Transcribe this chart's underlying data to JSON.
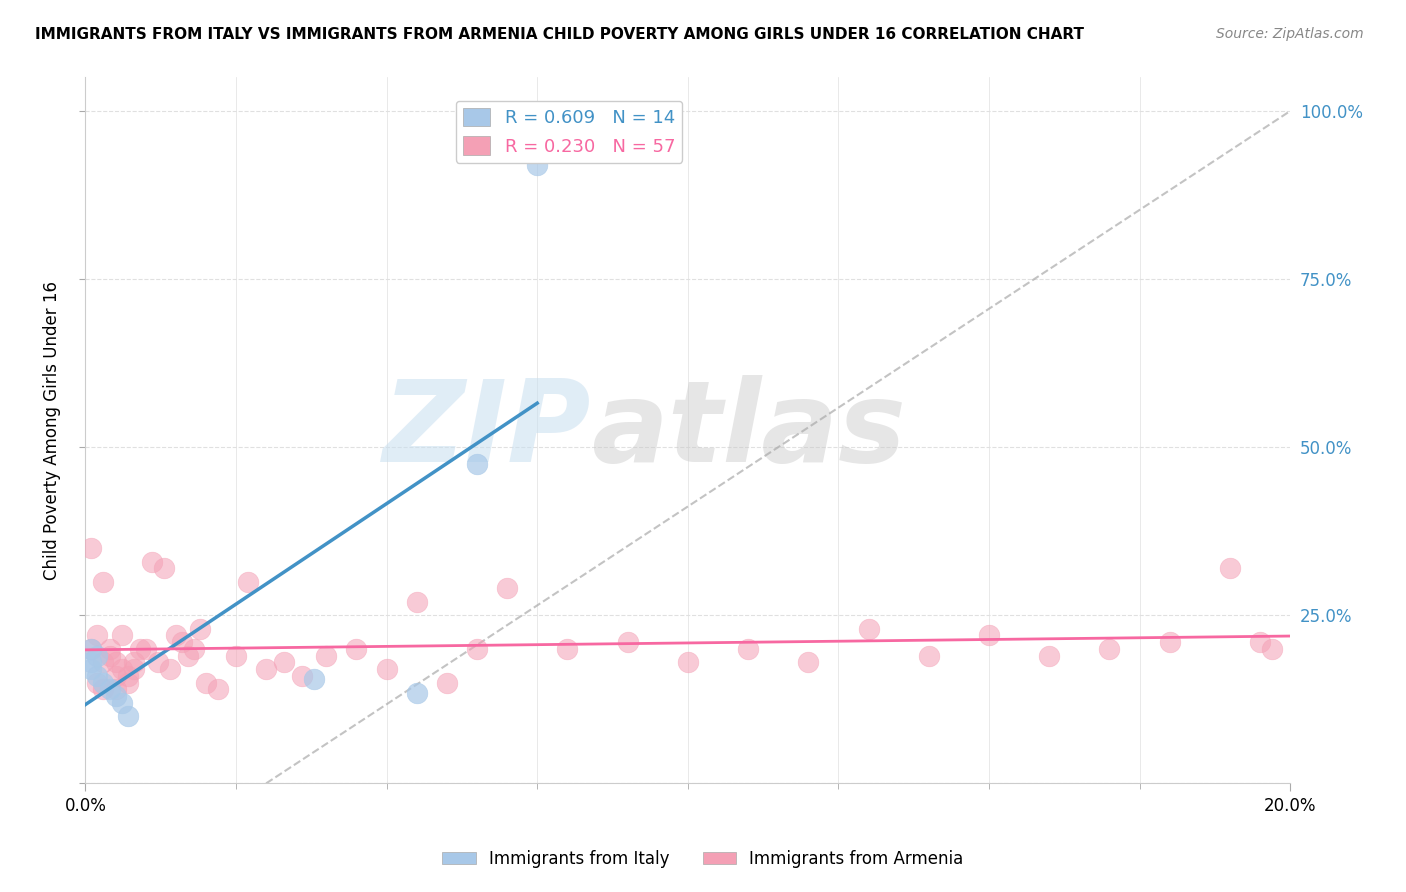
{
  "title": "IMMIGRANTS FROM ITALY VS IMMIGRANTS FROM ARMENIA CHILD POVERTY AMONG GIRLS UNDER 16 CORRELATION CHART",
  "source": "Source: ZipAtlas.com",
  "ylabel": "Child Poverty Among Girls Under 16",
  "right_ytick_labels": [
    "100.0%",
    "75.0%",
    "50.0%",
    "25.0%"
  ],
  "right_ytick_values": [
    1.0,
    0.75,
    0.5,
    0.25
  ],
  "legend_italy": "R = 0.609   N = 14",
  "legend_armenia": "R = 0.230   N = 57",
  "legend_bottom_italy": "Immigrants from Italy",
  "legend_bottom_armenia": "Immigrants from Armenia",
  "color_italy": "#a8c8e8",
  "color_armenia": "#f4a0b5",
  "color_italy_line": "#4292c6",
  "color_armenia_line": "#f768a1",
  "color_right_axis": "#4292c6",
  "watermark_zip": "ZIP",
  "watermark_atlas": "atlas",
  "italy_x": [
    0.001,
    0.001,
    0.001,
    0.002,
    0.002,
    0.003,
    0.004,
    0.005,
    0.006,
    0.007,
    0.055,
    0.065,
    0.075,
    0.038
  ],
  "italy_y": [
    0.18,
    0.2,
    0.17,
    0.16,
    0.19,
    0.15,
    0.14,
    0.13,
    0.12,
    0.1,
    0.135,
    0.475,
    0.92,
    0.155
  ],
  "armenia_x": [
    0.001,
    0.001,
    0.002,
    0.002,
    0.003,
    0.003,
    0.003,
    0.004,
    0.004,
    0.005,
    0.005,
    0.005,
    0.006,
    0.006,
    0.007,
    0.007,
    0.008,
    0.008,
    0.009,
    0.01,
    0.011,
    0.012,
    0.013,
    0.014,
    0.015,
    0.016,
    0.017,
    0.018,
    0.019,
    0.02,
    0.022,
    0.025,
    0.027,
    0.03,
    0.033,
    0.036,
    0.04,
    0.045,
    0.05,
    0.055,
    0.06,
    0.065,
    0.07,
    0.08,
    0.09,
    0.1,
    0.11,
    0.12,
    0.13,
    0.14,
    0.15,
    0.16,
    0.17,
    0.18,
    0.19,
    0.195,
    0.197
  ],
  "armenia_y": [
    0.35,
    0.2,
    0.22,
    0.15,
    0.3,
    0.18,
    0.14,
    0.19,
    0.2,
    0.16,
    0.18,
    0.14,
    0.22,
    0.17,
    0.15,
    0.16,
    0.17,
    0.18,
    0.2,
    0.2,
    0.33,
    0.18,
    0.32,
    0.17,
    0.22,
    0.21,
    0.19,
    0.2,
    0.23,
    0.15,
    0.14,
    0.19,
    0.3,
    0.17,
    0.18,
    0.16,
    0.19,
    0.2,
    0.17,
    0.27,
    0.15,
    0.2,
    0.29,
    0.2,
    0.21,
    0.18,
    0.2,
    0.18,
    0.23,
    0.19,
    0.22,
    0.19,
    0.2,
    0.21,
    0.32,
    0.21,
    0.2
  ],
  "xlim": [
    0.0,
    0.2
  ],
  "ylim": [
    0.0,
    1.05
  ],
  "minor_xtick_positions": [
    0.025,
    0.05,
    0.075,
    0.1,
    0.125,
    0.15,
    0.175
  ],
  "grid_color": "#e0e0e0",
  "ref_line_x": [
    0.03,
    0.2
  ],
  "ref_line_y": [
    0.0,
    1.0
  ]
}
